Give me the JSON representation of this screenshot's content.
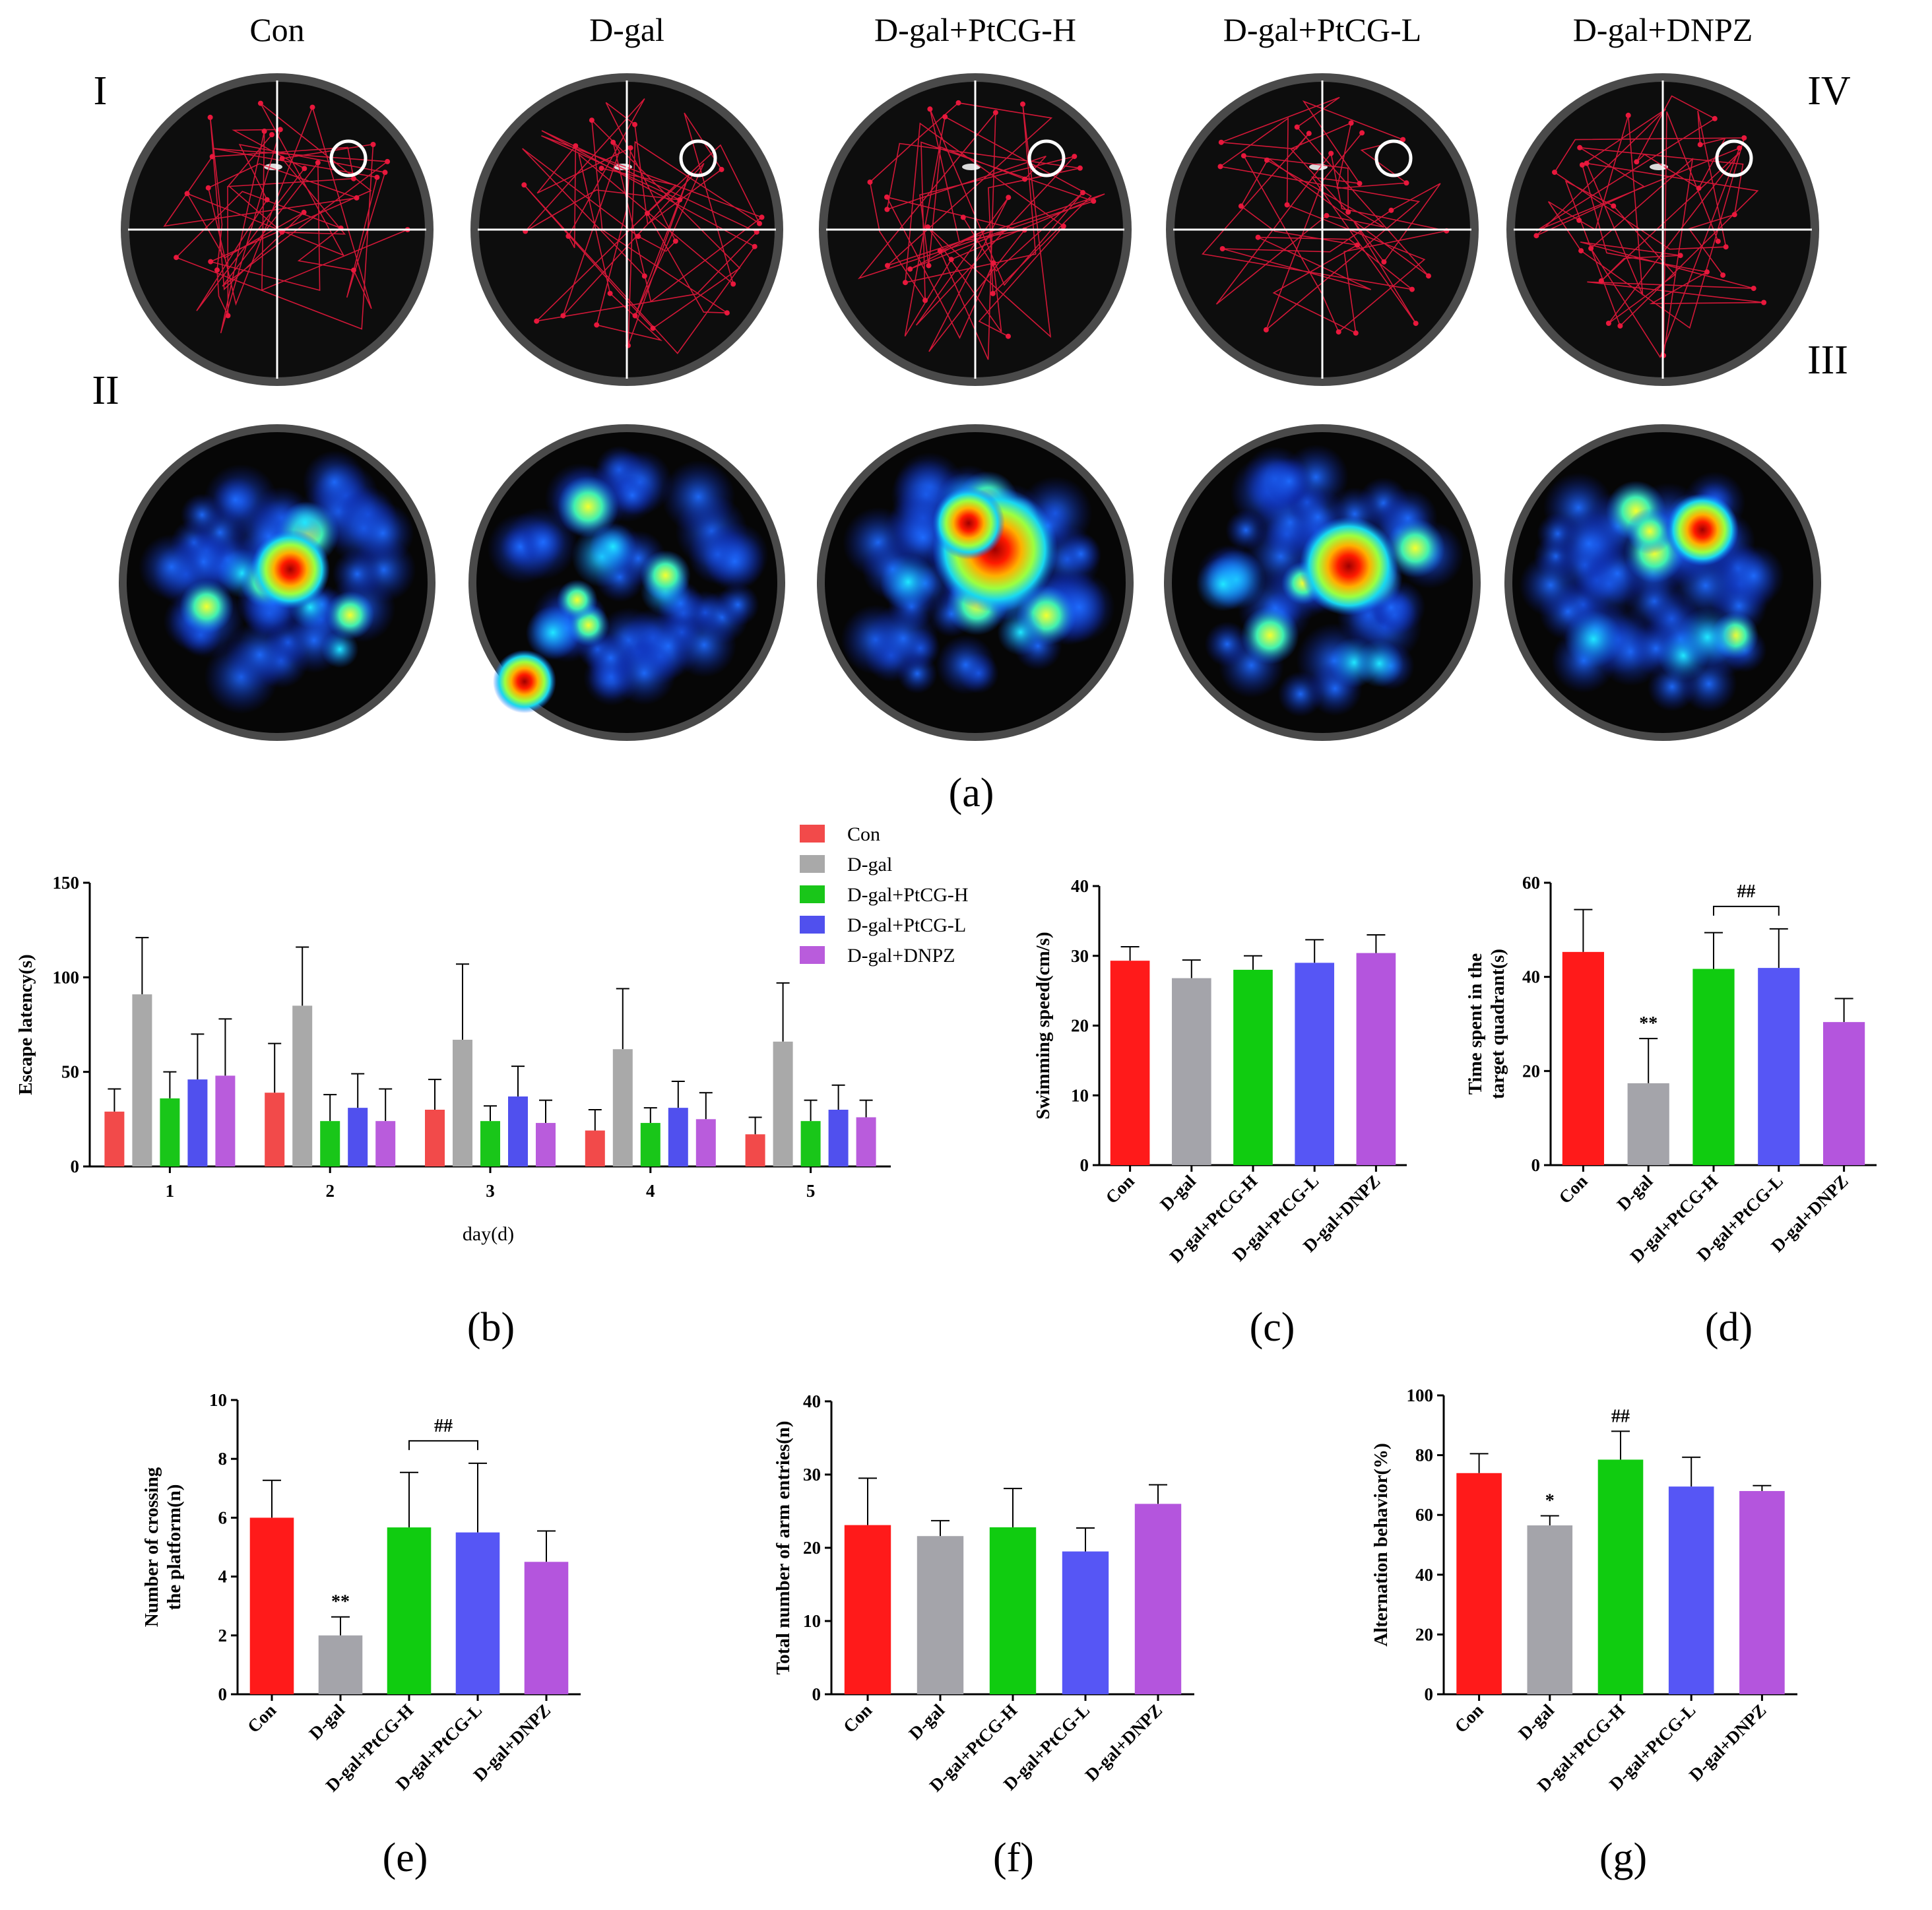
{
  "figure": {
    "group_titles": [
      "Con",
      "D-gal",
      "D-gal+PtCG-H",
      "D-gal+PtCG-L",
      "D-gal+DNPZ"
    ],
    "quadrant_labels": {
      "q1": "I",
      "q2": "II",
      "q3": "III",
      "q4": "IV"
    },
    "panel_labels": {
      "a": "(a)",
      "b": "(b)",
      "c": "(c)",
      "d": "(d)",
      "e": "(e)",
      "f": "(f)",
      "g": "(g)"
    }
  },
  "colors": {
    "Con": "#ff1a1a",
    "D-gal": "#a4a4aa",
    "D-gal+PtCG-H": "#10cc10",
    "D-gal+PtCG-L": "#5656f5",
    "D-gal+DNPZ": "#b455dd",
    "b_Con": "#f24a4a",
    "b_D-gal": "#a9a9a9",
    "b_D-gal+PtCG-H": "#19c619",
    "b_D-gal+PtCG-L": "#5050ee",
    "b_D-gal+DNPZ": "#b95cdc",
    "path": "#e8183c",
    "pool_rim": "#4a4a4a"
  },
  "chart_data": [
    {
      "id": "b",
      "type": "bar",
      "categories": [
        "1",
        "2",
        "3",
        "4",
        "5"
      ],
      "series": [
        {
          "name": "Con",
          "values": [
            29,
            39,
            30,
            19,
            17
          ],
          "errors": [
            12,
            26,
            16,
            11,
            9
          ]
        },
        {
          "name": "D-gal",
          "values": [
            91,
            85,
            67,
            62,
            66
          ],
          "errors": [
            30,
            31,
            40,
            32,
            31
          ]
        },
        {
          "name": "D-gal+PtCG-H",
          "values": [
            36,
            24,
            24,
            23,
            24
          ],
          "errors": [
            14,
            14,
            8,
            8,
            11
          ]
        },
        {
          "name": "D-gal+PtCG-L",
          "values": [
            46,
            31,
            37,
            31,
            30
          ],
          "errors": [
            24,
            18,
            16,
            14,
            13
          ]
        },
        {
          "name": "D-gal+DNPZ",
          "values": [
            48,
            24,
            23,
            25,
            26
          ],
          "errors": [
            30,
            17,
            12,
            14,
            9
          ]
        }
      ],
      "xlabel": "day(d)",
      "ylabel": "Escape latency(s)",
      "ylim": [
        0,
        150
      ],
      "yticks": [
        "0",
        "50",
        "100",
        "150"
      ],
      "legend": "top"
    },
    {
      "id": "c",
      "type": "bar",
      "categories": [
        "Con",
        "D-gal",
        "D-gal+PtCG-H",
        "D-gal+PtCG-L",
        "D-gal+DNPZ"
      ],
      "values": [
        29.3,
        26.8,
        28,
        29,
        30.4
      ],
      "errors": [
        2,
        2.6,
        2,
        3.3,
        2.6
      ],
      "ylabel": "Swimming speed(cm/s)",
      "ylim": [
        0,
        40
      ],
      "yticks": [
        "0",
        "10",
        "20",
        "30",
        "40"
      ],
      "annotations": []
    },
    {
      "id": "d",
      "type": "bar",
      "categories": [
        "Con",
        "D-gal",
        "D-gal+PtCG-H",
        "D-gal+PtCG-L",
        "D-gal+DNPZ"
      ],
      "values": [
        45.3,
        17.4,
        41.7,
        41.9,
        30.4
      ],
      "errors": [
        9,
        9.5,
        7.7,
        8.3,
        5
      ],
      "ylabel": "Time spent in the target quadrant(s)",
      "ylabel_lines": [
        "Time spent in the",
        "target quadrant(s)"
      ],
      "ylim": [
        0,
        60
      ],
      "yticks": [
        "0",
        "20",
        "40",
        "60"
      ],
      "annotations": [
        {
          "text": "**",
          "bar": 1
        },
        {
          "text": "##",
          "bracket": [
            2,
            3
          ]
        }
      ]
    },
    {
      "id": "e",
      "type": "bar",
      "categories": [
        "Con",
        "D-gal",
        "D-gal+PtCG-H",
        "D-gal+PtCG-L",
        "D-gal+DNPZ"
      ],
      "values": [
        6,
        2,
        5.67,
        5.5,
        4.5
      ],
      "errors": [
        1.27,
        0.63,
        1.87,
        2.35,
        1.05
      ],
      "ylabel": "Number of crossing the platform(n)",
      "ylabel_lines": [
        "Number of crossing",
        "the platform(n)"
      ],
      "ylim": [
        0,
        10
      ],
      "yticks": [
        "0",
        "2",
        "4",
        "6",
        "8",
        "10"
      ],
      "annotations": [
        {
          "text": "**",
          "bar": 1
        },
        {
          "text": "##",
          "bracket": [
            2,
            3
          ]
        }
      ]
    },
    {
      "id": "f",
      "type": "bar",
      "categories": [
        "Con",
        "D-gal",
        "D-gal+PtCG-H",
        "D-gal+PtCG-L",
        "D-gal+DNPZ"
      ],
      "values": [
        23.1,
        21.6,
        22.8,
        19.5,
        26
      ],
      "errors": [
        6.4,
        2.1,
        5.3,
        3.2,
        2.6
      ],
      "ylabel": "Total number of arm entries(n)",
      "ylim": [
        0,
        40
      ],
      "yticks": [
        "0",
        "10",
        "20",
        "30",
        "40"
      ],
      "annotations": []
    },
    {
      "id": "g",
      "type": "bar",
      "categories": [
        "Con",
        "D-gal",
        "D-gal+PtCG-H",
        "D-gal+PtCG-L",
        "D-gal+DNPZ"
      ],
      "values": [
        74,
        56.5,
        78.5,
        69.5,
        68
      ],
      "errors": [
        6.5,
        3.2,
        9.5,
        9.8,
        1.8
      ],
      "ylabel": "Alternation behavior(%)",
      "ylim": [
        0,
        100
      ],
      "yticks": [
        "0",
        "20",
        "40",
        "60",
        "80",
        "100"
      ],
      "annotations": [
        {
          "text": "*",
          "bar": 1
        },
        {
          "text": "##",
          "bar": 2
        }
      ]
    }
  ]
}
